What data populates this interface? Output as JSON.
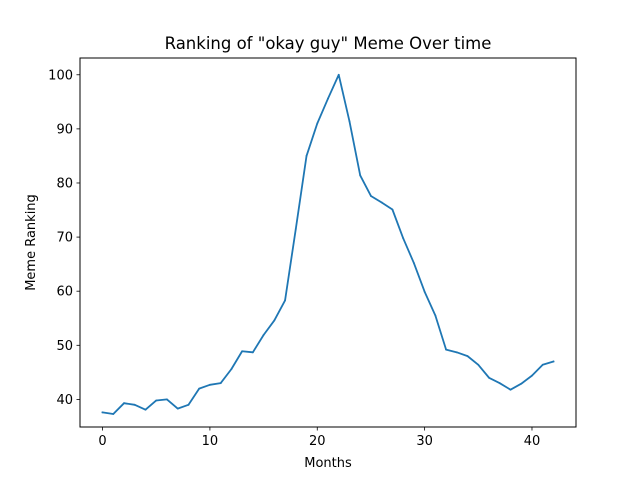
{
  "chart_data": {
    "type": "line",
    "title": "Ranking of \"okay guy\" Meme Over time",
    "xlabel": "Months",
    "ylabel": "Meme Ranking",
    "xlim": [
      -2.1,
      44.1
    ],
    "ylim": [
      34.9,
      103.1
    ],
    "xticks": [
      0,
      10,
      20,
      30,
      40
    ],
    "yticks": [
      40,
      50,
      60,
      70,
      80,
      90,
      100
    ],
    "grid": false,
    "legend": "none",
    "series": [
      {
        "color": "#1f77b4",
        "x": [
          0,
          1,
          2,
          3,
          4,
          5,
          6,
          7,
          8,
          9,
          10,
          11,
          12,
          13,
          14,
          15,
          16,
          17,
          18,
          19,
          20,
          21,
          22,
          23,
          24,
          25,
          26,
          27,
          28,
          29,
          30,
          31,
          32,
          33,
          34,
          35,
          36,
          37,
          38,
          39,
          40,
          41,
          42
        ],
        "y": [
          37.6,
          37.3,
          39.3,
          39.0,
          38.1,
          39.8,
          40.0,
          38.3,
          39.0,
          42.0,
          42.7,
          43.0,
          45.6,
          48.9,
          48.7,
          51.9,
          54.6,
          58.3,
          71.5,
          85.0,
          91.0,
          95.6,
          100.0,
          91.4,
          81.4,
          77.6,
          76.4,
          75.1,
          69.8,
          65.2,
          59.9,
          55.5,
          49.2,
          48.7,
          48.0,
          46.4,
          44.0,
          43.0,
          41.8,
          42.9,
          44.4,
          46.4,
          47.0
        ]
      }
    ]
  }
}
